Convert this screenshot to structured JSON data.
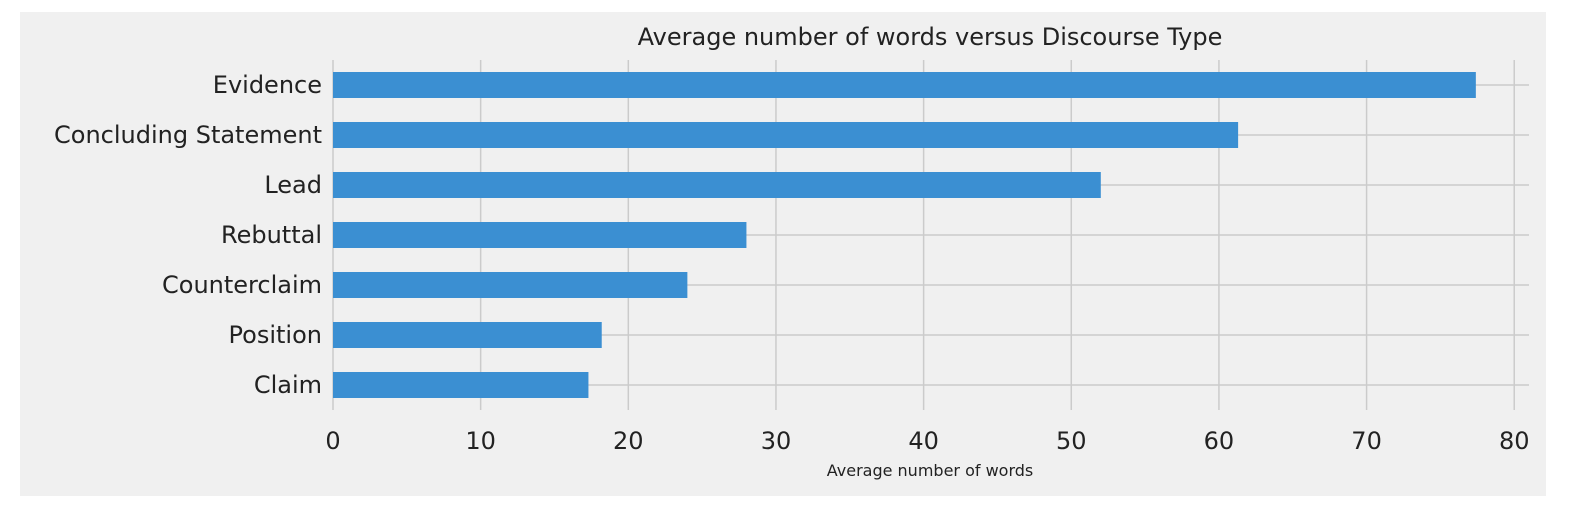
{
  "chart_data": {
    "type": "bar",
    "orientation": "horizontal",
    "title": "Average number of words versus Discourse Type",
    "xlabel": "Average number of words",
    "ylabel": "",
    "categories": [
      "Evidence",
      "Concluding Statement",
      "Lead",
      "Rebuttal",
      "Counterclaim",
      "Position",
      "Claim"
    ],
    "values": [
      77.4,
      61.3,
      52.0,
      28.0,
      24.0,
      18.2,
      17.3
    ],
    "xlim": [
      0,
      81
    ],
    "xticks": [
      "0",
      "10",
      "20",
      "30",
      "40",
      "50",
      "60",
      "70",
      "80"
    ],
    "grid": true,
    "colors": {
      "bar": "#3b8fd2",
      "plot_background": "#f0f0f0",
      "page_background": "#ffffff",
      "gridline": "#cbcbcb"
    }
  }
}
